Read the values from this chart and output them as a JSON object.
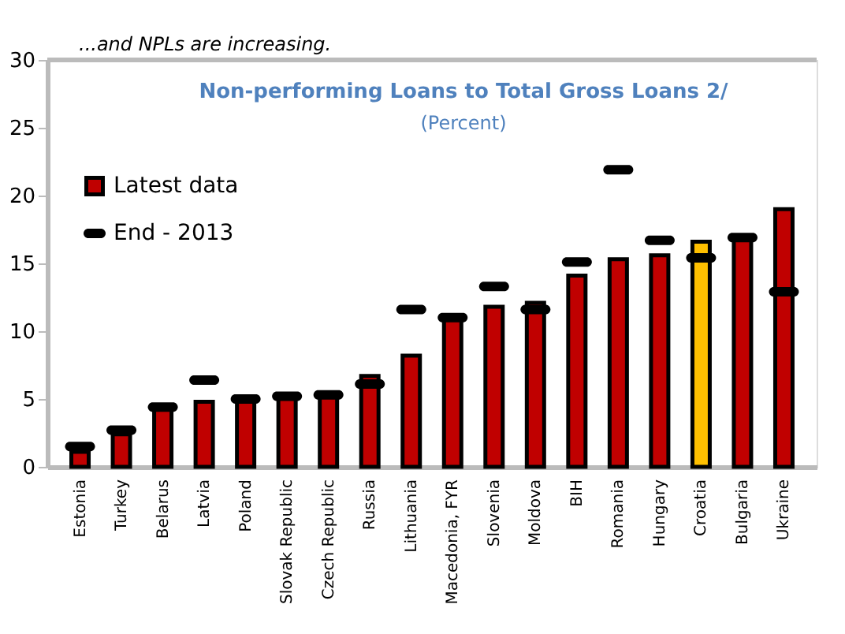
{
  "chart_data": {
    "type": "bar",
    "title": "Non-performing Loans to Total Gross Loans 2/",
    "subtitle": "(Percent)",
    "annotations": [
      "...and NPLs are increasing."
    ],
    "categories": [
      "Estonia",
      "Turkey",
      "Belarus",
      "Latvia",
      "Poland",
      "Slovak Republic",
      "Czech Republic",
      "Russia",
      "Lithuania",
      "Macedonia, FYR",
      "Slovenia",
      "Moldova",
      "BIH",
      "Romania",
      "Hungary",
      "Croatia",
      "Bulgaria",
      "Ukraine"
    ],
    "series": [
      {
        "name": "Latest data",
        "color": "#c00000",
        "colors": [
          "#c00000",
          "#c00000",
          "#c00000",
          "#c00000",
          "#c00000",
          "#c00000",
          "#c00000",
          "#c00000",
          "#c00000",
          "#c00000",
          "#c00000",
          "#c00000",
          "#c00000",
          "#c00000",
          "#c00000",
          "#ffc000",
          "#c00000",
          "#c00000"
        ],
        "values": [
          1.1,
          2.4,
          4.3,
          4.8,
          5.0,
          5.2,
          5.3,
          6.7,
          8.2,
          10.9,
          11.8,
          12.1,
          14.1,
          15.3,
          15.6,
          16.6,
          16.8,
          19.0
        ]
      },
      {
        "name": "End - 2013",
        "type": "scatter",
        "color": "#000000",
        "values": [
          1.5,
          2.7,
          4.4,
          6.4,
          5.0,
          5.2,
          5.3,
          6.1,
          11.6,
          11.0,
          13.3,
          11.6,
          15.1,
          21.9,
          16.7,
          15.4,
          16.9,
          12.9
        ]
      }
    ],
    "ylim": [
      0,
      30
    ],
    "yticks": [
      0,
      5,
      10,
      15,
      20,
      25,
      30
    ],
    "grid": false,
    "legend": "top left"
  }
}
